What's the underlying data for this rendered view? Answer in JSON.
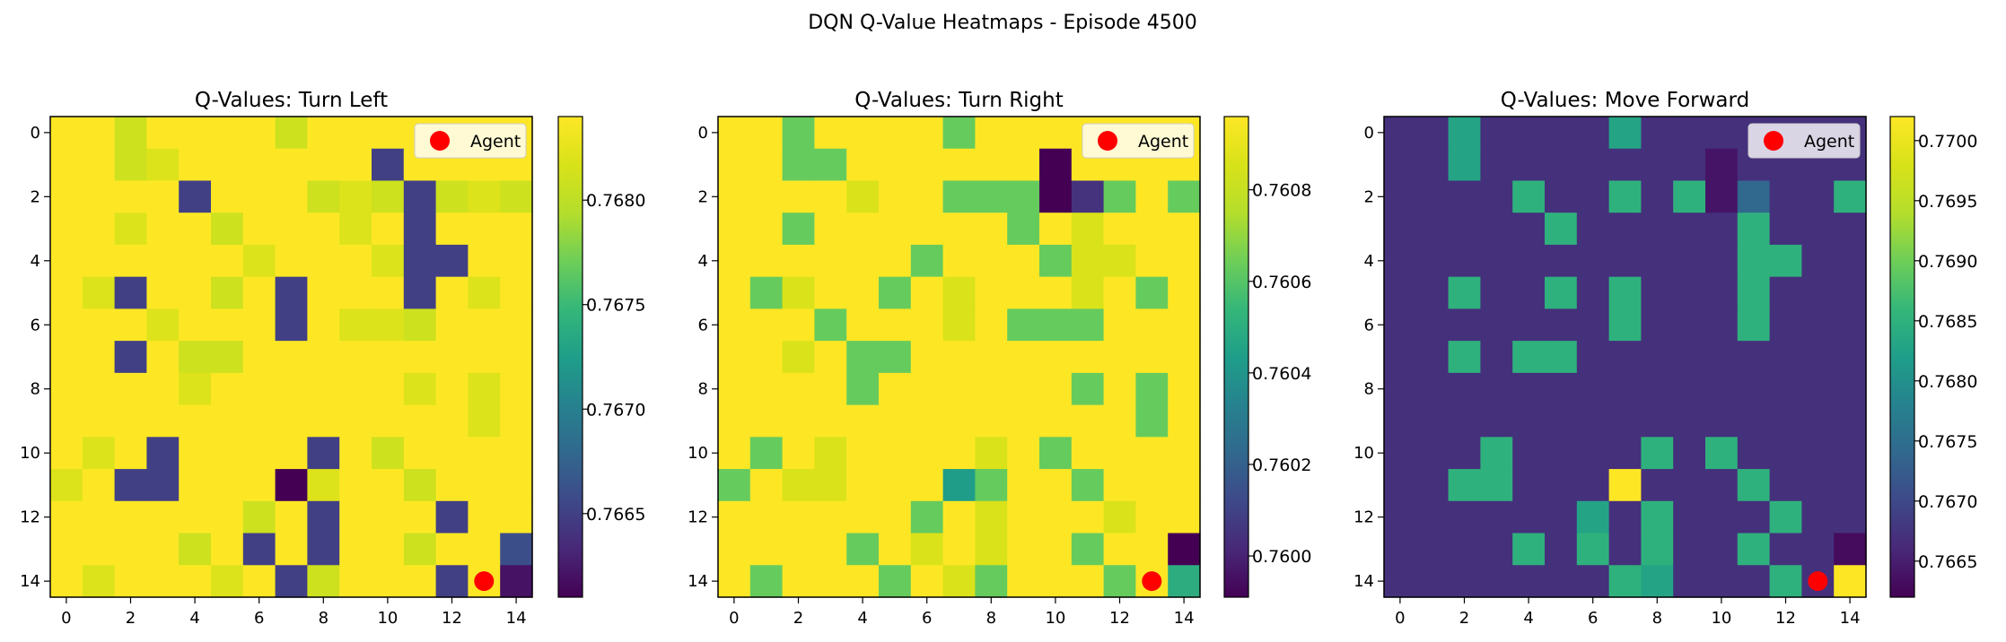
{
  "figure": {
    "suptitle": "DQN Q-Value Heatmaps - Episode 4500"
  },
  "chart_data": [
    {
      "type": "heatmap",
      "title": "Q-Values: Turn Left",
      "xlabel": "",
      "ylabel": "",
      "grid_size": 15,
      "x_ticks": [
        0,
        2,
        4,
        6,
        8,
        10,
        12,
        14
      ],
      "y_ticks": [
        0,
        2,
        4,
        6,
        8,
        10,
        12,
        14
      ],
      "colormap": "viridis",
      "vmin": 0.7661,
      "vmax": 0.7684,
      "colorbar_ticks": [
        "0.7665",
        "0.7670",
        "0.7675",
        "0.7680"
      ],
      "colorbar_tick_values": [
        0.7665,
        0.767,
        0.7675,
        0.768
      ],
      "legend": {
        "label": "Agent",
        "placement": "upper right"
      },
      "agent": {
        "x": 13,
        "y": 14
      },
      "grid": false,
      "values": [
        [
          0.7684,
          0.7684,
          0.7681,
          0.7684,
          0.7684,
          0.7684,
          0.7684,
          0.7681,
          0.7684,
          0.7684,
          0.7684,
          0.7684,
          0.7684,
          0.7684,
          0.7684
        ],
        [
          0.7684,
          0.7684,
          0.7681,
          0.7682,
          0.7684,
          0.7684,
          0.7684,
          0.7684,
          0.7684,
          0.7684,
          0.7665,
          0.7684,
          0.7684,
          0.7684,
          0.7684
        ],
        [
          0.7684,
          0.7684,
          0.7684,
          0.7684,
          0.7665,
          0.7684,
          0.7684,
          0.7684,
          0.7681,
          0.7682,
          0.7681,
          0.7665,
          0.7681,
          0.7682,
          0.7681
        ],
        [
          0.7684,
          0.7684,
          0.7682,
          0.7684,
          0.7684,
          0.7681,
          0.7684,
          0.7684,
          0.7684,
          0.7682,
          0.7684,
          0.7665,
          0.7684,
          0.7684,
          0.7684
        ],
        [
          0.7684,
          0.7684,
          0.7684,
          0.7684,
          0.7684,
          0.7684,
          0.7682,
          0.7684,
          0.7684,
          0.7684,
          0.7682,
          0.7665,
          0.7665,
          0.7684,
          0.7684
        ],
        [
          0.7684,
          0.7682,
          0.7665,
          0.7684,
          0.7684,
          0.7681,
          0.7684,
          0.7665,
          0.7684,
          0.7684,
          0.7684,
          0.7665,
          0.7684,
          0.7682,
          0.7684
        ],
        [
          0.7684,
          0.7684,
          0.7684,
          0.7682,
          0.7684,
          0.7684,
          0.7684,
          0.7665,
          0.7684,
          0.7682,
          0.7682,
          0.7681,
          0.7684,
          0.7684,
          0.7684
        ],
        [
          0.7684,
          0.7684,
          0.7665,
          0.7684,
          0.7681,
          0.7681,
          0.7684,
          0.7684,
          0.7684,
          0.7684,
          0.7684,
          0.7684,
          0.7684,
          0.7684,
          0.7684
        ],
        [
          0.7684,
          0.7684,
          0.7684,
          0.7684,
          0.7682,
          0.7684,
          0.7684,
          0.7684,
          0.7684,
          0.7684,
          0.7684,
          0.7682,
          0.7684,
          0.7682,
          0.7684
        ],
        [
          0.7684,
          0.7684,
          0.7684,
          0.7684,
          0.7684,
          0.7684,
          0.7684,
          0.7684,
          0.7684,
          0.7684,
          0.7684,
          0.7684,
          0.7684,
          0.7682,
          0.7684
        ],
        [
          0.7684,
          0.7682,
          0.7684,
          0.7665,
          0.7684,
          0.7684,
          0.7684,
          0.7684,
          0.7665,
          0.7684,
          0.7681,
          0.7684,
          0.7684,
          0.7684,
          0.7684
        ],
        [
          0.7682,
          0.7684,
          0.7665,
          0.7665,
          0.7684,
          0.7684,
          0.7684,
          0.7661,
          0.7682,
          0.7684,
          0.7684,
          0.7681,
          0.7684,
          0.7684,
          0.7684
        ],
        [
          0.7684,
          0.7684,
          0.7684,
          0.7684,
          0.7684,
          0.7684,
          0.7681,
          0.7684,
          0.7665,
          0.7684,
          0.7684,
          0.7684,
          0.7665,
          0.7684,
          0.7684
        ],
        [
          0.7684,
          0.7684,
          0.7684,
          0.7684,
          0.7681,
          0.7684,
          0.7665,
          0.7684,
          0.7665,
          0.7684,
          0.7684,
          0.7681,
          0.7684,
          0.7684,
          0.7666
        ],
        [
          0.7684,
          0.7682,
          0.7684,
          0.7684,
          0.7684,
          0.7682,
          0.7684,
          0.7665,
          0.7681,
          0.7684,
          0.7684,
          0.7684,
          0.7665,
          0.7684,
          0.7662
        ]
      ]
    },
    {
      "type": "heatmap",
      "title": "Q-Values: Turn Right",
      "xlabel": "",
      "ylabel": "",
      "grid_size": 15,
      "x_ticks": [
        0,
        2,
        4,
        6,
        8,
        10,
        12,
        14
      ],
      "y_ticks": [
        0,
        2,
        4,
        6,
        8,
        10,
        12,
        14
      ],
      "colormap": "viridis",
      "vmin": 0.75991,
      "vmax": 0.76096,
      "colorbar_ticks": [
        "0.7600",
        "0.7602",
        "0.7604",
        "0.7606",
        "0.7608"
      ],
      "colorbar_tick_values": [
        0.76,
        0.7602,
        0.7604,
        0.7606,
        0.7608
      ],
      "legend": {
        "label": "Agent",
        "placement": "upper right"
      },
      "agent": {
        "x": 13,
        "y": 14
      },
      "grid": false,
      "values": [
        [
          0.76096,
          0.76096,
          0.76063,
          0.76096,
          0.76096,
          0.76096,
          0.76096,
          0.76063,
          0.76096,
          0.76096,
          0.76096,
          0.76096,
          0.76096,
          0.76096,
          0.76096
        ],
        [
          0.76096,
          0.76096,
          0.76063,
          0.76063,
          0.76096,
          0.76096,
          0.76096,
          0.76096,
          0.76096,
          0.76096,
          0.75991,
          0.76096,
          0.76096,
          0.76096,
          0.76096
        ],
        [
          0.76096,
          0.76096,
          0.76096,
          0.76096,
          0.76086,
          0.76096,
          0.76096,
          0.76063,
          0.76063,
          0.76063,
          0.75991,
          0.76005,
          0.76063,
          0.76096,
          0.76063
        ],
        [
          0.76096,
          0.76096,
          0.76063,
          0.76096,
          0.76096,
          0.76096,
          0.76096,
          0.76096,
          0.76096,
          0.76063,
          0.76096,
          0.76086,
          0.76096,
          0.76096,
          0.76096
        ],
        [
          0.76096,
          0.76096,
          0.76096,
          0.76096,
          0.76096,
          0.76096,
          0.76063,
          0.76096,
          0.76096,
          0.76096,
          0.76063,
          0.76086,
          0.76086,
          0.76096,
          0.76096
        ],
        [
          0.76096,
          0.76063,
          0.76086,
          0.76096,
          0.76096,
          0.76063,
          0.76096,
          0.76086,
          0.76096,
          0.76096,
          0.76096,
          0.76086,
          0.76096,
          0.76063,
          0.76096
        ],
        [
          0.76096,
          0.76096,
          0.76096,
          0.76063,
          0.76096,
          0.76096,
          0.76096,
          0.76086,
          0.76096,
          0.76063,
          0.76063,
          0.76063,
          0.76096,
          0.76096,
          0.76096
        ],
        [
          0.76096,
          0.76096,
          0.76086,
          0.76096,
          0.76063,
          0.76063,
          0.76096,
          0.76096,
          0.76096,
          0.76096,
          0.76096,
          0.76096,
          0.76096,
          0.76096,
          0.76096
        ],
        [
          0.76096,
          0.76096,
          0.76096,
          0.76096,
          0.76063,
          0.76096,
          0.76096,
          0.76096,
          0.76096,
          0.76096,
          0.76096,
          0.76063,
          0.76096,
          0.76063,
          0.76096
        ],
        [
          0.76096,
          0.76096,
          0.76096,
          0.76096,
          0.76096,
          0.76096,
          0.76096,
          0.76096,
          0.76096,
          0.76096,
          0.76096,
          0.76096,
          0.76096,
          0.76063,
          0.76096
        ],
        [
          0.76096,
          0.76063,
          0.76096,
          0.76086,
          0.76096,
          0.76096,
          0.76096,
          0.76096,
          0.76086,
          0.76096,
          0.76063,
          0.76096,
          0.76096,
          0.76096,
          0.76096
        ],
        [
          0.76063,
          0.76096,
          0.76086,
          0.76086,
          0.76096,
          0.76096,
          0.76096,
          0.76043,
          0.76063,
          0.76096,
          0.76096,
          0.76063,
          0.76096,
          0.76096,
          0.76096
        ],
        [
          0.76096,
          0.76096,
          0.76096,
          0.76096,
          0.76096,
          0.76096,
          0.76063,
          0.76096,
          0.76086,
          0.76096,
          0.76096,
          0.76096,
          0.76086,
          0.76096,
          0.76096
        ],
        [
          0.76096,
          0.76096,
          0.76096,
          0.76096,
          0.76063,
          0.76096,
          0.76086,
          0.76096,
          0.76086,
          0.76096,
          0.76096,
          0.76063,
          0.76096,
          0.76096,
          0.75991
        ],
        [
          0.76096,
          0.76063,
          0.76096,
          0.76096,
          0.76096,
          0.76063,
          0.76096,
          0.76086,
          0.76063,
          0.76096,
          0.76096,
          0.76096,
          0.76063,
          0.76096,
          0.7605
        ]
      ]
    },
    {
      "type": "heatmap",
      "title": "Q-Values: Move Forward",
      "xlabel": "",
      "ylabel": "",
      "grid_size": 15,
      "x_ticks": [
        0,
        2,
        4,
        6,
        8,
        10,
        12,
        14
      ],
      "y_ticks": [
        0,
        2,
        4,
        6,
        8,
        10,
        12,
        14
      ],
      "colormap": "viridis",
      "vmin": 0.7662,
      "vmax": 0.7702,
      "colorbar_ticks": [
        "0.7665",
        "0.7670",
        "0.7675",
        "0.7680",
        "0.7685",
        "0.7690",
        "0.7695",
        "0.7700"
      ],
      "colorbar_tick_values": [
        0.7665,
        0.767,
        0.7675,
        0.768,
        0.7685,
        0.769,
        0.7695,
        0.77
      ],
      "legend": {
        "label": "Agent",
        "placement": "upper right"
      },
      "agent": {
        "x": 13,
        "y": 14
      },
      "grid": false,
      "values": [
        [
          0.7667,
          0.7667,
          0.7683,
          0.7667,
          0.7667,
          0.7667,
          0.7667,
          0.7683,
          0.7667,
          0.7667,
          0.7667,
          0.7667,
          0.7667,
          0.7667,
          0.7667
        ],
        [
          0.7667,
          0.7667,
          0.7683,
          0.7667,
          0.7667,
          0.7667,
          0.7667,
          0.7667,
          0.7667,
          0.7667,
          0.7664,
          0.7667,
          0.7667,
          0.7667,
          0.7667
        ],
        [
          0.7667,
          0.7667,
          0.7667,
          0.7667,
          0.7685,
          0.7667,
          0.7667,
          0.7685,
          0.7667,
          0.7685,
          0.7664,
          0.7674,
          0.7667,
          0.7667,
          0.7685
        ],
        [
          0.7667,
          0.7667,
          0.7667,
          0.7667,
          0.7667,
          0.7685,
          0.7667,
          0.7667,
          0.7667,
          0.7667,
          0.7667,
          0.7685,
          0.7667,
          0.7667,
          0.7667
        ],
        [
          0.7667,
          0.7667,
          0.7667,
          0.7667,
          0.7667,
          0.7667,
          0.7667,
          0.7667,
          0.7667,
          0.7667,
          0.7667,
          0.7685,
          0.7685,
          0.7667,
          0.7667
        ],
        [
          0.7667,
          0.7667,
          0.7685,
          0.7667,
          0.7667,
          0.7685,
          0.7667,
          0.7685,
          0.7667,
          0.7667,
          0.7667,
          0.7685,
          0.7667,
          0.7667,
          0.7667
        ],
        [
          0.7667,
          0.7667,
          0.7667,
          0.7667,
          0.7667,
          0.7667,
          0.7667,
          0.7685,
          0.7667,
          0.7667,
          0.7667,
          0.7685,
          0.7667,
          0.7667,
          0.7667
        ],
        [
          0.7667,
          0.7667,
          0.7685,
          0.7667,
          0.7685,
          0.7685,
          0.7667,
          0.7667,
          0.7667,
          0.7667,
          0.7667,
          0.7667,
          0.7667,
          0.7667,
          0.7667
        ],
        [
          0.7667,
          0.7667,
          0.7667,
          0.7667,
          0.7667,
          0.7667,
          0.7667,
          0.7667,
          0.7667,
          0.7667,
          0.7667,
          0.7667,
          0.7667,
          0.7667,
          0.7667
        ],
        [
          0.7667,
          0.7667,
          0.7667,
          0.7667,
          0.7667,
          0.7667,
          0.7667,
          0.7667,
          0.7667,
          0.7667,
          0.7667,
          0.7667,
          0.7667,
          0.7667,
          0.7667
        ],
        [
          0.7667,
          0.7667,
          0.7667,
          0.7685,
          0.7667,
          0.7667,
          0.7667,
          0.7667,
          0.7685,
          0.7667,
          0.7685,
          0.7667,
          0.7667,
          0.7667,
          0.7667
        ],
        [
          0.7667,
          0.7667,
          0.7685,
          0.7685,
          0.7667,
          0.7667,
          0.7667,
          0.7702,
          0.7667,
          0.7667,
          0.7667,
          0.7685,
          0.7667,
          0.7667,
          0.7667
        ],
        [
          0.7667,
          0.7667,
          0.7667,
          0.7667,
          0.7667,
          0.7667,
          0.7683,
          0.7667,
          0.7685,
          0.7667,
          0.7667,
          0.7667,
          0.7685,
          0.7667,
          0.7667
        ],
        [
          0.7667,
          0.7667,
          0.7667,
          0.7667,
          0.7685,
          0.7667,
          0.7685,
          0.7667,
          0.7685,
          0.7667,
          0.7667,
          0.7685,
          0.7667,
          0.7667,
          0.7663
        ],
        [
          0.7667,
          0.7667,
          0.7667,
          0.7667,
          0.7667,
          0.7667,
          0.7667,
          0.7685,
          0.7683,
          0.7667,
          0.7667,
          0.7667,
          0.7685,
          0.7667,
          0.7702
        ]
      ]
    }
  ],
  "colors": {
    "agent_marker": "#ff0000",
    "frame": "#000000",
    "background": "#ffffff"
  }
}
